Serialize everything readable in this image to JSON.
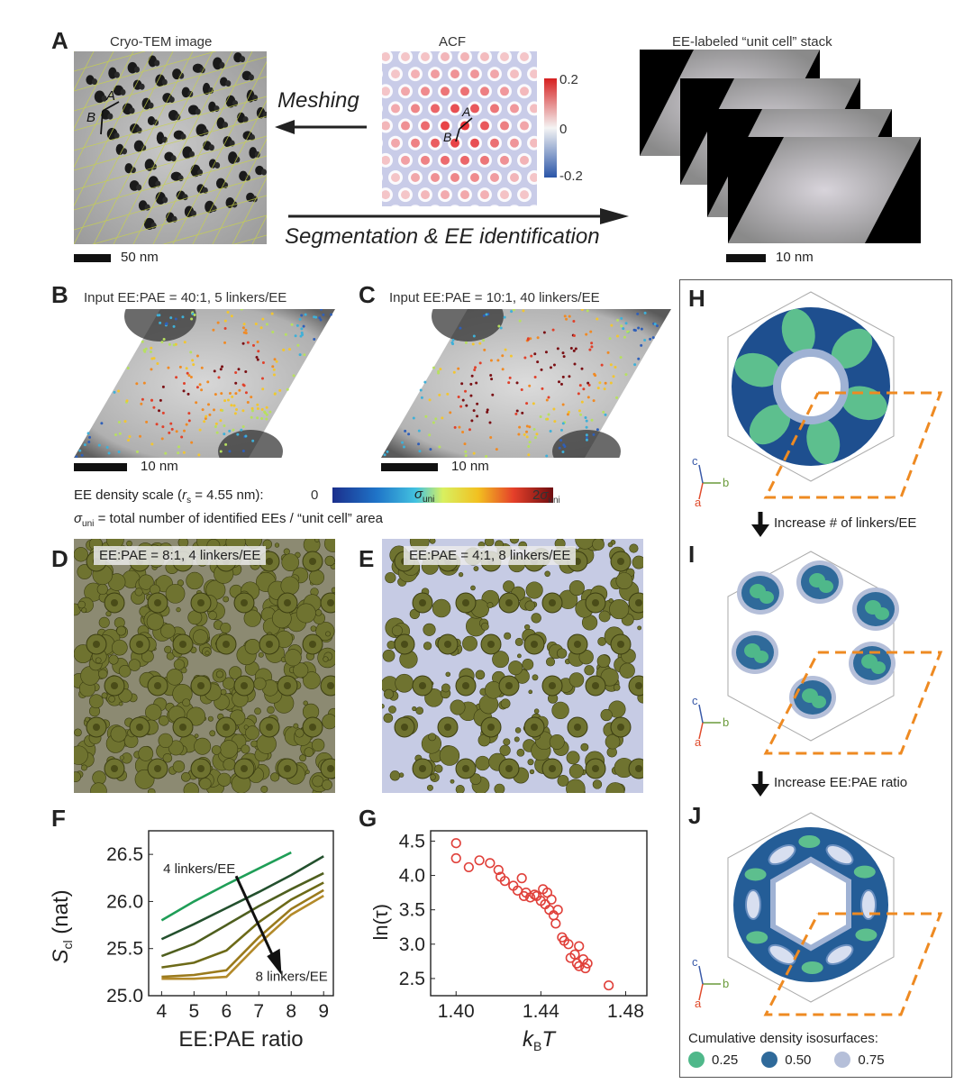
{
  "panels": {
    "A": {
      "letter": "A",
      "cryo_label": "Cryo-TEM image",
      "acf_label": "ACF",
      "stack_label": "EE-labeled “unit cell” stack",
      "meshing": "Meshing",
      "segmentation": "Segmentation & EE identification",
      "scale_left": "50 nm",
      "scale_right": "10 nm",
      "colorbar_ticks": [
        "0.2",
        "0",
        "-0.2"
      ],
      "vec_a": "A",
      "vec_b": "B"
    },
    "B": {
      "letter": "B",
      "title": "Input EE:PAE = 40:1, 5 linkers/EE",
      "scale": "10 nm"
    },
    "C": {
      "letter": "C",
      "title": "Input EE:PAE = 10:1, 40 linkers/EE",
      "scale": "10 nm"
    },
    "density_scale": {
      "prefix": "EE density scale (",
      "r_sym": "r",
      "r_sub": "s",
      "suffix": " = 4.55 nm):",
      "min": "0",
      "mid_sym": "σ",
      "mid_sub": "uni",
      "max_prefix": "2",
      "max_sym": "σ",
      "max_sub": "uni",
      "sigma_def_sym": "σ",
      "sigma_def_sub": "uni",
      "sigma_def_text": " = total number of identified EEs / “unit cell” area"
    },
    "D": {
      "letter": "D",
      "title": "EE:PAE = 8:1, 4 linkers/EE"
    },
    "E": {
      "letter": "E",
      "title": "EE:PAE = 4:1, 8 linkers/EE"
    },
    "H": {
      "letter": "H",
      "arrow_label": "Increase # of linkers/EE"
    },
    "I": {
      "letter": "I",
      "arrow_label": "Increase EE:PAE ratio"
    },
    "J": {
      "letter": "J"
    },
    "axes_labels": {
      "a": "a",
      "b": "b",
      "c": "c"
    },
    "isosurface": {
      "title": "Cumulative density isosurfaces:",
      "items": [
        {
          "label": "0.25",
          "color": "#4fb88a"
        },
        {
          "label": "0.50",
          "color": "#2f6a9a"
        },
        {
          "label": "0.75",
          "color": "#b5bfd9"
        }
      ]
    },
    "F": {
      "letter": "F"
    },
    "G": {
      "letter": "G"
    }
  },
  "chart_data": [
    {
      "type": "line",
      "panel": "F",
      "xlabel": "EE:PAE ratio",
      "ylabel": "S",
      "ylabel_sub": "cl",
      "ylabel_unit": " (nat)",
      "xlim": [
        3.6,
        9.3
      ],
      "ylim": [
        25.0,
        26.75
      ],
      "xticks": [
        "4",
        "5",
        "6",
        "7",
        "8",
        "9"
      ],
      "yticks": [
        "25.0",
        "25.5",
        "26.0",
        "26.5"
      ],
      "annotation_top": "4 linkers/EE",
      "annotation_bottom": "8 linkers/EE",
      "series": [
        {
          "color": "#1f9e57",
          "x": [
            4,
            5,
            6,
            7,
            8
          ],
          "values": [
            25.8,
            26.0,
            26.18,
            26.35,
            26.52
          ]
        },
        {
          "color": "#23502d",
          "x": [
            4,
            5,
            6,
            7,
            8,
            9
          ],
          "values": [
            25.6,
            25.76,
            25.93,
            26.1,
            26.28,
            26.48
          ]
        },
        {
          "color": "#4f5f1f",
          "x": [
            4,
            5,
            6,
            7,
            8,
            9
          ],
          "values": [
            25.42,
            25.55,
            25.75,
            25.95,
            26.13,
            26.3
          ]
        },
        {
          "color": "#6d6a18",
          "x": [
            4,
            5,
            6,
            7,
            8,
            9
          ],
          "values": [
            25.3,
            25.35,
            25.48,
            25.78,
            26.02,
            26.2
          ]
        },
        {
          "color": "#9a7a1c",
          "x": [
            4,
            5,
            6,
            7,
            8,
            9
          ],
          "values": [
            25.2,
            25.22,
            25.27,
            25.62,
            25.92,
            26.12
          ]
        },
        {
          "color": "#b38a2a",
          "x": [
            4,
            5,
            6,
            7,
            8,
            9
          ],
          "values": [
            25.18,
            25.18,
            25.2,
            25.55,
            25.86,
            26.06
          ]
        }
      ]
    },
    {
      "type": "scatter",
      "panel": "G",
      "xlabel": "k",
      "xlabel_sub": "B",
      "xlabel_tail": "T",
      "ylabel": "ln(τ)",
      "xlim": [
        1.388,
        1.49
      ],
      "ylim": [
        2.25,
        4.65
      ],
      "xticks": [
        "1.40",
        "1.44",
        "1.48"
      ],
      "yticks": [
        "2.5",
        "3.0",
        "3.5",
        "4.0",
        "4.5"
      ],
      "color": "#e0403a",
      "x": [
        1.4,
        1.4,
        1.406,
        1.411,
        1.416,
        1.42,
        1.421,
        1.423,
        1.427,
        1.429,
        1.431,
        1.432,
        1.433,
        1.435,
        1.437,
        1.438,
        1.44,
        1.441,
        1.442,
        1.443,
        1.444,
        1.445,
        1.446,
        1.447,
        1.448,
        1.45,
        1.451,
        1.453,
        1.454,
        1.456,
        1.457,
        1.458,
        1.458,
        1.46,
        1.461,
        1.462,
        1.472
      ],
      "y": [
        4.47,
        4.25,
        4.12,
        4.22,
        4.18,
        4.08,
        3.98,
        3.92,
        3.85,
        3.78,
        3.96,
        3.7,
        3.75,
        3.68,
        3.72,
        3.7,
        3.63,
        3.8,
        3.58,
        3.75,
        3.5,
        3.65,
        3.42,
        3.3,
        3.5,
        3.1,
        3.05,
        3.0,
        2.8,
        2.85,
        2.72,
        2.97,
        2.68,
        2.78,
        2.65,
        2.72,
        2.4
      ]
    }
  ]
}
